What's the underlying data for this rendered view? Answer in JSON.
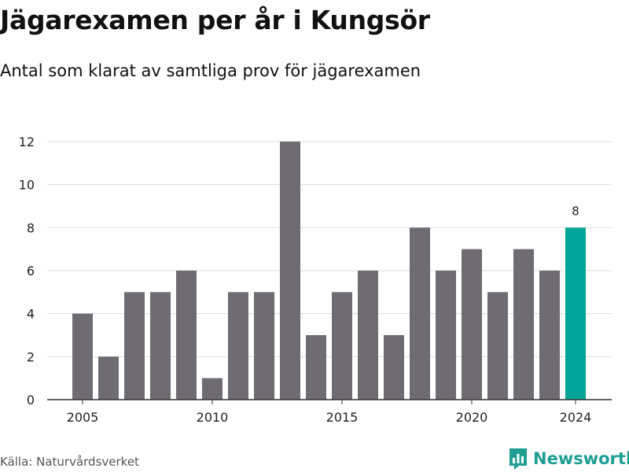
{
  "title": "Jägarexamen per år i Kungsör",
  "subtitle": "Antal som klarat av samtliga prov för jägarexamen",
  "source": "Källa: Naturvårdsverket",
  "brand": "Newsworthy",
  "colors": {
    "bar": "#6e6c72",
    "highlight": "#00a598",
    "grid": "#dddddd",
    "axis": "#333333",
    "brand": "#1f9e93"
  },
  "chart_data": {
    "type": "bar",
    "x": [
      2005,
      2006,
      2007,
      2008,
      2009,
      2010,
      2011,
      2012,
      2013,
      2014,
      2015,
      2016,
      2017,
      2018,
      2019,
      2020,
      2021,
      2022,
      2023,
      2024
    ],
    "values": [
      4,
      2,
      5,
      5,
      6,
      1,
      5,
      5,
      12,
      3,
      5,
      6,
      3,
      8,
      6,
      7,
      5,
      7,
      6,
      8
    ],
    "x_tick_labels": [
      "2005",
      "2010",
      "2015",
      "2020",
      "2024"
    ],
    "y_tick_labels": [
      "0",
      "2",
      "4",
      "6",
      "8",
      "10",
      "12"
    ],
    "ylim": [
      0,
      12
    ],
    "highlight": {
      "x": 2024,
      "label": "8"
    },
    "grid": true,
    "legend": "none"
  }
}
